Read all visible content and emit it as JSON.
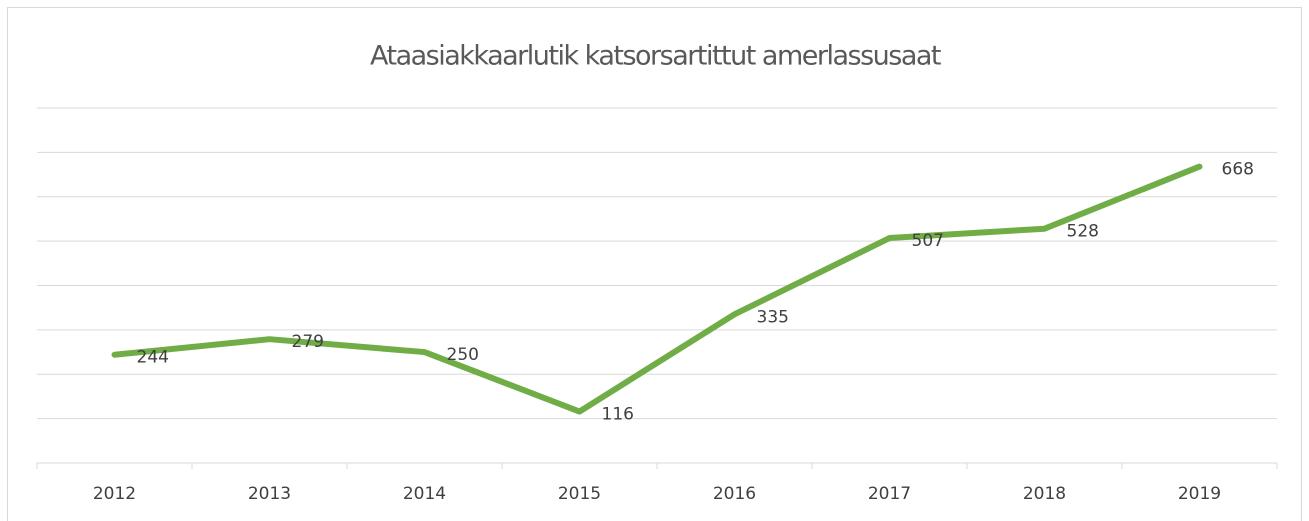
{
  "chart_data": {
    "type": "line",
    "title": "Ataasiakkaarlutik katsorsartittut amerlassusaat",
    "categories": [
      "2012",
      "2013",
      "2014",
      "2015",
      "2016",
      "2017",
      "2018",
      "2019"
    ],
    "values": [
      244,
      279,
      250,
      116,
      335,
      507,
      528,
      668
    ],
    "color": "#70ad47",
    "ylim": [
      0,
      800
    ],
    "yticks": [
      0,
      100,
      200,
      300,
      400,
      500,
      600,
      700,
      800
    ],
    "grid": true
  }
}
